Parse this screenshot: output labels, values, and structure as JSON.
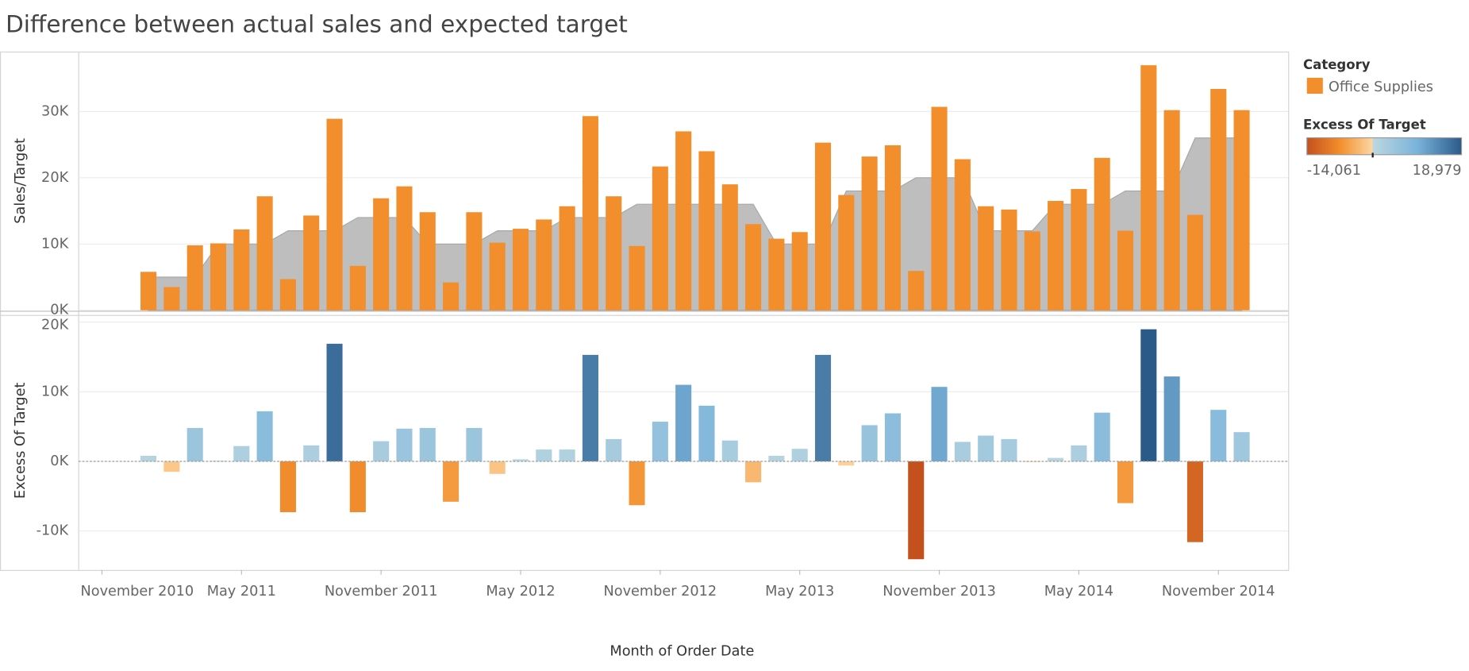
{
  "title": "Difference between actual sales and expected target",
  "x_label": "Month of Order Date",
  "chart_data": [
    {
      "type": "bar",
      "y_label": "Sales/Target",
      "legend_title": "Category",
      "x": [
        "2011-01",
        "2011-02",
        "2011-03",
        "2011-04",
        "2011-05",
        "2011-06",
        "2011-07",
        "2011-08",
        "2011-09",
        "2011-10",
        "2011-11",
        "2011-12",
        "2012-01",
        "2012-02",
        "2012-03",
        "2012-04",
        "2012-05",
        "2012-06",
        "2012-07",
        "2012-08",
        "2012-09",
        "2012-10",
        "2012-11",
        "2012-12",
        "2013-01",
        "2013-02",
        "2013-03",
        "2013-04",
        "2013-05",
        "2013-06",
        "2013-07",
        "2013-08",
        "2013-09",
        "2013-10",
        "2013-11",
        "2013-12",
        "2014-01",
        "2014-02",
        "2014-03",
        "2014-04",
        "2014-05",
        "2014-06",
        "2014-07",
        "2014-08",
        "2014-09",
        "2014-10",
        "2014-11",
        "2014-12"
      ],
      "xlim": [
        "2010-10",
        "2015-02"
      ],
      "series": [
        {
          "name": "Office Supplies",
          "color": "#f28e2b",
          "values": [
            5800,
            3500,
            9800,
            10100,
            12200,
            17200,
            4700,
            14300,
            28900,
            6700,
            16900,
            18700,
            14800,
            4200,
            14800,
            10200,
            12300,
            13700,
            15700,
            29300,
            17200,
            9700,
            21700,
            27000,
            24000,
            19000,
            13000,
            10800,
            11800,
            25300,
            17400,
            23200,
            24900,
            5939,
            30700,
            22800,
            15700,
            15200,
            11900,
            16500,
            18300,
            23000,
            12000,
            36979,
            30200,
            14400,
            33400,
            30200
          ]
        }
      ],
      "target": {
        "color": "#bebebe",
        "values": [
          5000,
          5000,
          5000,
          10000,
          10000,
          10000,
          12000,
          12000,
          12000,
          14000,
          14000,
          14000,
          10000,
          10000,
          10000,
          12000,
          12000,
          12000,
          14000,
          14000,
          14000,
          16000,
          16000,
          16000,
          16000,
          16000,
          16000,
          10000,
          10000,
          10000,
          18000,
          18000,
          18000,
          20000,
          20000,
          20000,
          12000,
          12000,
          12000,
          16000,
          16000,
          16000,
          18000,
          18000,
          18000,
          26000,
          26000,
          26000
        ]
      },
      "ylim": [
        0,
        38900
      ],
      "yticks": [
        {
          "value": 0,
          "label": "0K"
        },
        {
          "value": 10000,
          "label": "10K"
        },
        {
          "value": 20000,
          "label": "20K"
        },
        {
          "value": 30000,
          "label": "30K"
        }
      ],
      "grid": true
    },
    {
      "type": "bar",
      "y_label": "Excess Of Target",
      "values": [
        800,
        -1500,
        4800,
        100,
        2200,
        7200,
        -7300,
        2300,
        16900,
        -7300,
        2900,
        4700,
        4800,
        -5800,
        4800,
        -1800,
        300,
        1700,
        1700,
        15300,
        3200,
        -6300,
        5700,
        11000,
        8000,
        3000,
        -3000,
        800,
        1800,
        15300,
        -600,
        5200,
        6900,
        -14061,
        10700,
        2800,
        3700,
        3200,
        -100,
        500,
        2300,
        7000,
        -6000,
        18979,
        12200,
        -11600,
        7400,
        4200
      ],
      "color_scale": {
        "title": "Excess Of Target",
        "min": {
          "value": -14061,
          "label": "-14,061"
        },
        "max": {
          "value": 18979,
          "label": "18,979"
        },
        "negative": [
          "#c4501e",
          "#f28e2b",
          "#fdd7a4"
        ],
        "positive": [
          "#bcd7e0",
          "#7ab3db",
          "#2a5a88"
        ]
      },
      "ylim": [
        -15600,
        20900
      ],
      "yticks": [
        {
          "value": -10000,
          "label": "-10K"
        },
        {
          "value": 0,
          "label": "0K"
        },
        {
          "value": 10000,
          "label": "10K"
        },
        {
          "value": 20000,
          "label": "20K"
        }
      ],
      "xticks": [
        {
          "value": "2010-11",
          "label": "November 2010"
        },
        {
          "value": "2011-05",
          "label": "May 2011"
        },
        {
          "value": "2011-11",
          "label": "November 2011"
        },
        {
          "value": "2012-05",
          "label": "May 2012"
        },
        {
          "value": "2012-11",
          "label": "November 2012"
        },
        {
          "value": "2013-05",
          "label": "May 2013"
        },
        {
          "value": "2013-11",
          "label": "November 2013"
        },
        {
          "value": "2014-05",
          "label": "May 2014"
        },
        {
          "value": "2014-11",
          "label": "November 2014"
        }
      ],
      "grid": true
    }
  ]
}
